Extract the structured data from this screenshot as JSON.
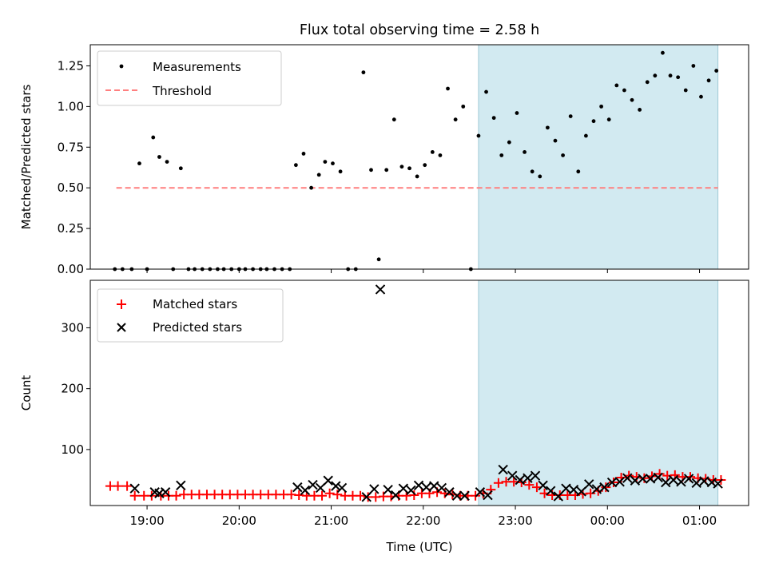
{
  "title": "Flux total observing time = 2.58 h",
  "colors": {
    "measurement": "#000000",
    "threshold": "#ff7f7f",
    "matched": "#ff0000",
    "predicted": "#000000",
    "highlight": "#add8e6"
  },
  "chart_data": [
    {
      "type": "scatter",
      "ylabel": "Matched/Predicted stars",
      "ylim": [
        0,
        1.38
      ],
      "yticks": [
        "0.00",
        "0.25",
        "0.50",
        "0.75",
        "1.00",
        "1.25"
      ],
      "xlim": [
        "18:23",
        "01:32"
      ],
      "legend_position": "upper-left",
      "highlight_span": [
        "22:36",
        "01:12"
      ],
      "threshold": {
        "name": "Threshold",
        "value": 0.5,
        "x_start": "18:40",
        "x_end": "01:12"
      },
      "series": [
        {
          "name": "Measurements",
          "marker": "dot",
          "points": [
            [
              "18:39",
              0.0
            ],
            [
              "18:44",
              0.0
            ],
            [
              "18:50",
              0.0
            ],
            [
              "18:55",
              0.65
            ],
            [
              "19:00",
              0.0
            ],
            [
              "19:04",
              0.81
            ],
            [
              "19:08",
              0.69
            ],
            [
              "19:13",
              0.66
            ],
            [
              "19:17",
              0.0
            ],
            [
              "19:22",
              0.62
            ],
            [
              "19:27",
              0.0
            ],
            [
              "19:31",
              0.0
            ],
            [
              "19:36",
              0.0
            ],
            [
              "19:41",
              0.0
            ],
            [
              "19:46",
              0.0
            ],
            [
              "19:50",
              0.0
            ],
            [
              "19:55",
              0.0
            ],
            [
              "20:00",
              0.0
            ],
            [
              "20:04",
              0.0
            ],
            [
              "20:09",
              0.0
            ],
            [
              "20:14",
              0.0
            ],
            [
              "20:18",
              0.0
            ],
            [
              "20:23",
              0.0
            ],
            [
              "20:28",
              0.0
            ],
            [
              "20:33",
              0.0
            ],
            [
              "20:37",
              0.64
            ],
            [
              "20:42",
              0.71
            ],
            [
              "20:47",
              0.5
            ],
            [
              "20:52",
              0.58
            ],
            [
              "20:56",
              0.66
            ],
            [
              "21:01",
              0.65
            ],
            [
              "21:06",
              0.6
            ],
            [
              "21:11",
              0.0
            ],
            [
              "21:16",
              0.0
            ],
            [
              "21:21",
              1.21
            ],
            [
              "21:26",
              0.61
            ],
            [
              "21:31",
              0.06
            ],
            [
              "21:36",
              0.61
            ],
            [
              "21:41",
              0.92
            ],
            [
              "21:46",
              0.63
            ],
            [
              "21:51",
              0.62
            ],
            [
              "21:56",
              0.57
            ],
            [
              "22:01",
              0.64
            ],
            [
              "22:06",
              0.72
            ],
            [
              "22:11",
              0.7
            ],
            [
              "22:16",
              1.11
            ],
            [
              "22:21",
              0.92
            ],
            [
              "22:26",
              1.0
            ],
            [
              "22:31",
              0.0
            ],
            [
              "22:36",
              0.82
            ],
            [
              "22:41",
              1.09
            ],
            [
              "22:46",
              0.93
            ],
            [
              "22:51",
              0.7
            ],
            [
              "22:56",
              0.78
            ],
            [
              "23:01",
              0.96
            ],
            [
              "23:06",
              0.72
            ],
            [
              "23:11",
              0.6
            ],
            [
              "23:16",
              0.57
            ],
            [
              "23:21",
              0.87
            ],
            [
              "23:26",
              0.79
            ],
            [
              "23:31",
              0.7
            ],
            [
              "23:36",
              0.94
            ],
            [
              "23:41",
              0.6
            ],
            [
              "23:46",
              0.82
            ],
            [
              "23:51",
              0.91
            ],
            [
              "23:56",
              1.0
            ],
            [
              "00:01",
              0.92
            ],
            [
              "00:06",
              1.13
            ],
            [
              "00:11",
              1.1
            ],
            [
              "00:16",
              1.04
            ],
            [
              "00:21",
              0.98
            ],
            [
              "00:26",
              1.15
            ],
            [
              "00:31",
              1.19
            ],
            [
              "00:36",
              1.33
            ],
            [
              "00:41",
              1.19
            ],
            [
              "00:46",
              1.18
            ],
            [
              "00:51",
              1.1
            ],
            [
              "00:56",
              1.25
            ],
            [
              "01:01",
              1.06
            ],
            [
              "01:06",
              1.16
            ],
            [
              "01:11",
              1.22
            ]
          ]
        }
      ]
    },
    {
      "type": "scatter",
      "ylabel": "Count",
      "xlabel": "Time (UTC)",
      "ylim": [
        8,
        378
      ],
      "yticks": [
        "100",
        "200",
        "300"
      ],
      "xlim": [
        "18:23",
        "01:32"
      ],
      "xticks": [
        "19:00",
        "20:00",
        "21:00",
        "22:00",
        "23:00",
        "00:00",
        "01:00"
      ],
      "legend_position": "upper-left",
      "highlight_span": [
        "22:36",
        "01:12"
      ],
      "series": [
        {
          "name": "Matched stars",
          "marker": "plus",
          "points": [
            [
              "18:36",
              40
            ],
            [
              "18:41",
              40
            ],
            [
              "18:47",
              40
            ],
            [
              "18:52",
              24
            ],
            [
              "18:58",
              24
            ],
            [
              "19:03",
              24
            ],
            [
              "19:09",
              24
            ],
            [
              "19:14",
              24
            ],
            [
              "19:19",
              24
            ],
            [
              "19:24",
              26
            ],
            [
              "19:29",
              26
            ],
            [
              "19:34",
              26
            ],
            [
              "19:39",
              26
            ],
            [
              "19:44",
              26
            ],
            [
              "19:49",
              26
            ],
            [
              "19:54",
              26
            ],
            [
              "19:59",
              26
            ],
            [
              "20:04",
              26
            ],
            [
              "20:09",
              26
            ],
            [
              "20:14",
              26
            ],
            [
              "20:19",
              26
            ],
            [
              "20:24",
              26
            ],
            [
              "20:29",
              26
            ],
            [
              "20:34",
              26
            ],
            [
              "20:39",
              25
            ],
            [
              "20:44",
              24
            ],
            [
              "20:49",
              24
            ],
            [
              "20:54",
              24
            ],
            [
              "20:59",
              28
            ],
            [
              "21:04",
              26
            ],
            [
              "21:09",
              24
            ],
            [
              "21:14",
              24
            ],
            [
              "21:19",
              24
            ],
            [
              "21:24",
              22
            ],
            [
              "21:29",
              22
            ],
            [
              "21:34",
              23
            ],
            [
              "21:39",
              23
            ],
            [
              "21:44",
              24
            ],
            [
              "21:49",
              24
            ],
            [
              "21:54",
              25
            ],
            [
              "21:59",
              28
            ],
            [
              "22:04",
              28
            ],
            [
              "22:09",
              30
            ],
            [
              "22:14",
              28
            ],
            [
              "22:19",
              26
            ],
            [
              "22:24",
              24
            ],
            [
              "22:29",
              24
            ],
            [
              "22:34",
              24
            ],
            [
              "22:39",
              28
            ],
            [
              "22:44",
              34
            ],
            [
              "22:49",
              45
            ],
            [
              "22:54",
              47
            ],
            [
              "22:59",
              47
            ],
            [
              "23:04",
              46
            ],
            [
              "23:09",
              42
            ],
            [
              "23:14",
              38
            ],
            [
              "23:19",
              28
            ],
            [
              "23:24",
              25
            ],
            [
              "23:29",
              25
            ],
            [
              "23:34",
              25
            ],
            [
              "23:39",
              25
            ],
            [
              "23:44",
              27
            ],
            [
              "23:49",
              28
            ],
            [
              "23:54",
              32
            ],
            [
              "23:59",
              38
            ],
            [
              "00:04",
              46
            ],
            [
              "00:09",
              54
            ],
            [
              "00:14",
              57
            ],
            [
              "00:19",
              55
            ],
            [
              "00:24",
              53
            ],
            [
              "00:29",
              56
            ],
            [
              "00:34",
              60
            ],
            [
              "00:39",
              57
            ],
            [
              "00:44",
              58
            ],
            [
              "00:49",
              55
            ],
            [
              "00:54",
              55
            ],
            [
              "00:59",
              53
            ],
            [
              "01:04",
              52
            ],
            [
              "01:09",
              50
            ],
            [
              "01:14",
              50
            ]
          ]
        },
        {
          "name": "Predicted stars",
          "marker": "x",
          "points": [
            [
              "18:52",
              36
            ],
            [
              "19:05",
              30
            ],
            [
              "19:08",
              28
            ],
            [
              "19:12",
              30
            ],
            [
              "19:22",
              41
            ],
            [
              "20:38",
              38
            ],
            [
              "20:43",
              33
            ],
            [
              "20:48",
              42
            ],
            [
              "20:53",
              37
            ],
            [
              "20:58",
              49
            ],
            [
              "21:03",
              40
            ],
            [
              "21:07",
              37
            ],
            [
              "21:23",
              22
            ],
            [
              "21:28",
              35
            ],
            [
              "21:32",
              363
            ],
            [
              "21:37",
              34
            ],
            [
              "21:42",
              25
            ],
            [
              "21:47",
              36
            ],
            [
              "21:52",
              33
            ],
            [
              "21:57",
              41
            ],
            [
              "22:02",
              38
            ],
            [
              "22:07",
              40
            ],
            [
              "22:12",
              37
            ],
            [
              "22:17",
              30
            ],
            [
              "22:22",
              24
            ],
            [
              "22:27",
              24
            ],
            [
              "22:37",
              30
            ],
            [
              "22:42",
              25
            ],
            [
              "22:52",
              67
            ],
            [
              "22:58",
              57
            ],
            [
              "23:03",
              50
            ],
            [
              "23:08",
              53
            ],
            [
              "23:13",
              57
            ],
            [
              "23:18",
              41
            ],
            [
              "23:23",
              32
            ],
            [
              "23:28",
              23
            ],
            [
              "23:33",
              36
            ],
            [
              "23:38",
              34
            ],
            [
              "23:43",
              31
            ],
            [
              "23:48",
              43
            ],
            [
              "23:53",
              35
            ],
            [
              "23:58",
              38
            ],
            [
              "00:03",
              46
            ],
            [
              "00:08",
              47
            ],
            [
              "00:13",
              53
            ],
            [
              "00:18",
              49
            ],
            [
              "00:23",
              52
            ],
            [
              "00:28",
              52
            ],
            [
              "00:33",
              54
            ],
            [
              "00:38",
              46
            ],
            [
              "00:43",
              50
            ],
            [
              "00:48",
              47
            ],
            [
              "00:53",
              52
            ],
            [
              "00:58",
              45
            ],
            [
              "01:03",
              48
            ],
            [
              "01:08",
              46
            ],
            [
              "01:12",
              44
            ]
          ]
        }
      ]
    }
  ]
}
